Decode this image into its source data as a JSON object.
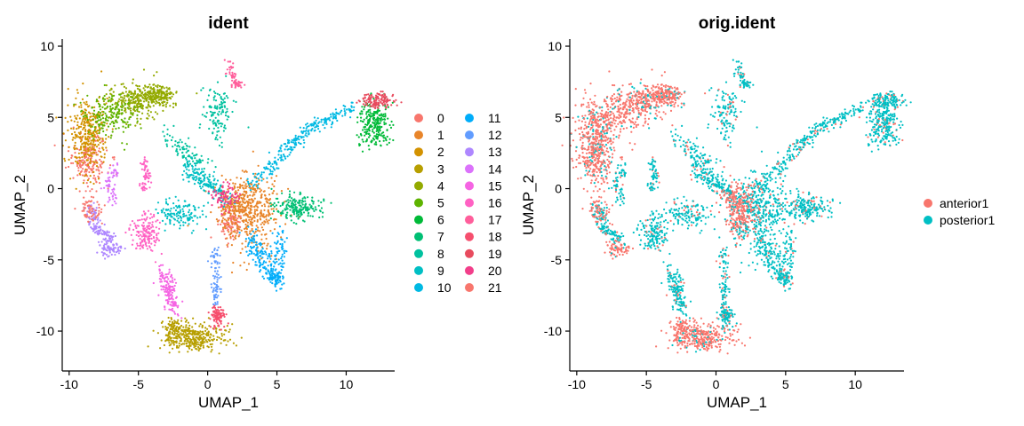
{
  "colors": {
    "ident": [
      "#F8766D",
      "#E8852A",
      "#D39200",
      "#B79F00",
      "#93AA00",
      "#5EB300",
      "#00BA38",
      "#00BF74",
      "#00C19F",
      "#00BFC4",
      "#00B9E3",
      "#00ADFA",
      "#619CFF",
      "#AE87FF",
      "#DB72FB",
      "#F564E3",
      "#FF61C3",
      "#FF5E9B",
      "#F64F6E",
      "#E84B5E",
      "#F23E8A",
      "#F8766D"
    ],
    "orig": [
      "#F8766D",
      "#00BFC4"
    ],
    "axis": "#000000"
  },
  "chart_data": [
    {
      "type": "scatter",
      "title": "ident",
      "xlabel": "UMAP_1",
      "ylabel": "UMAP_2",
      "xlim": [
        -10.5,
        13.5
      ],
      "ylim": [
        -12.8,
        10.5
      ],
      "xticks": [
        -10,
        -5,
        0,
        5,
        10
      ],
      "xtick_labels": [
        "-10",
        "-5",
        "0",
        "5",
        "10"
      ],
      "yticks": [
        -10,
        -5,
        0,
        5,
        10
      ],
      "ytick_labels": [
        "-10",
        "-5",
        "0",
        "5",
        "10"
      ],
      "legend_position": "right",
      "legend": [
        "0",
        "1",
        "2",
        "3",
        "4",
        "5",
        "6",
        "7",
        "8",
        "9",
        "10",
        "11",
        "12",
        "13",
        "14",
        "15",
        "16",
        "17",
        "18",
        "19",
        "20",
        "21"
      ]
    },
    {
      "type": "scatter",
      "title": "orig.ident",
      "xlabel": "UMAP_1",
      "ylabel": "UMAP_2",
      "xlim": [
        -10.5,
        13.5
      ],
      "ylim": [
        -12.8,
        10.5
      ],
      "xticks": [
        -10,
        -5,
        0,
        5,
        10
      ],
      "xtick_labels": [
        "-10",
        "-5",
        "0",
        "5",
        "10"
      ],
      "yticks": [
        -10,
        -5,
        0,
        5,
        10
      ],
      "ytick_labels": [
        "-10",
        "-5",
        "0",
        "5",
        "10"
      ],
      "legend_position": "right",
      "legend": [
        "anterior1",
        "posterior1"
      ]
    }
  ]
}
